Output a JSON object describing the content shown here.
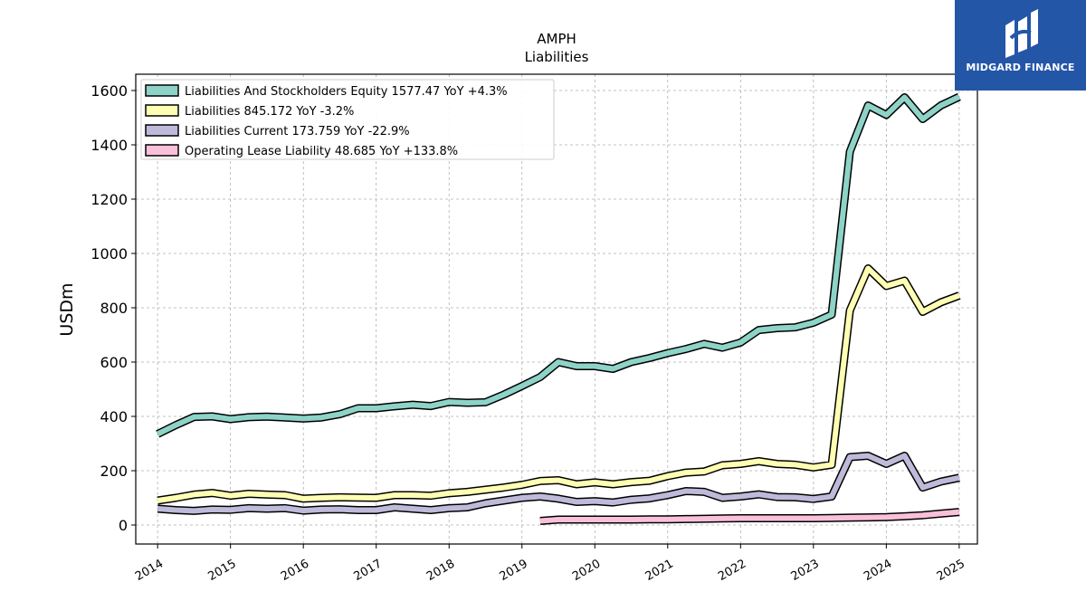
{
  "chart_data": {
    "type": "line",
    "title": "AMPH",
    "subtitle": "Liabilities",
    "ylabel": "USDm",
    "xlabel": "",
    "ylim": [
      -70,
      1660
    ],
    "yticks": [
      0,
      200,
      400,
      600,
      800,
      1000,
      1200,
      1400,
      1600
    ],
    "xticks": [
      "2014",
      "2015",
      "2016",
      "2017",
      "2018",
      "2019",
      "2020",
      "2021",
      "2022",
      "2023",
      "2024",
      "2025"
    ],
    "grid": true,
    "legend_position": "top-left",
    "series": [
      {
        "name": "Liabilities And Stockholders Equity  1577.47 YoY +4.3%",
        "color": "#8dd3c7",
        "x": [
          2014.0,
          2014.25,
          2014.5,
          2014.75,
          2015.0,
          2015.25,
          2015.5,
          2015.75,
          2016.0,
          2016.25,
          2016.5,
          2016.75,
          2017.0,
          2017.25,
          2017.5,
          2017.75,
          2018.0,
          2018.25,
          2018.5,
          2018.75,
          2019.0,
          2019.25,
          2019.5,
          2019.75,
          2020.0,
          2020.25,
          2020.5,
          2020.75,
          2021.0,
          2021.25,
          2021.5,
          2021.75,
          2022.0,
          2022.25,
          2022.5,
          2022.75,
          2023.0,
          2023.25,
          2023.5,
          2023.75,
          2024.0,
          2024.25,
          2024.5,
          2024.75,
          2025.0
        ],
        "y": [
          335,
          368,
          398,
          400,
          390,
          397,
          399,
          396,
          392,
          396,
          408,
          430,
          430,
          437,
          443,
          438,
          453,
          450,
          452,
          480,
          512,
          545,
          600,
          585,
          585,
          575,
          600,
          615,
          633,
          648,
          667,
          653,
          672,
          718,
          725,
          728,
          745,
          775,
          1375,
          1545,
          1510,
          1575,
          1495,
          1545,
          1577
        ]
      },
      {
        "name": "Liabilities  845.172 YoY -3.2%",
        "color": "#ffffb3",
        "x": [
          2014.0,
          2014.25,
          2014.5,
          2014.75,
          2015.0,
          2015.25,
          2015.5,
          2015.75,
          2016.0,
          2016.25,
          2016.5,
          2016.75,
          2017.0,
          2017.25,
          2017.5,
          2017.75,
          2018.0,
          2018.25,
          2018.5,
          2018.75,
          2019.0,
          2019.25,
          2019.5,
          2019.75,
          2020.0,
          2020.25,
          2020.5,
          2020.75,
          2021.0,
          2021.25,
          2021.5,
          2021.75,
          2022.0,
          2022.25,
          2022.5,
          2022.75,
          2023.0,
          2023.25,
          2023.5,
          2023.75,
          2024.0,
          2024.25,
          2024.5,
          2024.75,
          2025.0
        ],
        "y": [
          90,
          100,
          112,
          118,
          108,
          115,
          112,
          110,
          97,
          100,
          102,
          101,
          100,
          110,
          110,
          108,
          117,
          122,
          130,
          138,
          148,
          162,
          165,
          150,
          157,
          150,
          158,
          163,
          180,
          193,
          197,
          220,
          225,
          235,
          225,
          222,
          212,
          222,
          790,
          945,
          880,
          900,
          785,
          820,
          845
        ]
      },
      {
        "name": "Liabilities Current  173.759 YoY -22.9%",
        "color": "#bebada",
        "x": [
          2014.0,
          2014.25,
          2014.5,
          2014.75,
          2015.0,
          2015.25,
          2015.5,
          2015.75,
          2016.0,
          2016.25,
          2016.5,
          2016.75,
          2017.0,
          2017.25,
          2017.5,
          2017.75,
          2018.0,
          2018.25,
          2018.5,
          2018.75,
          2019.0,
          2019.25,
          2019.5,
          2019.75,
          2020.0,
          2020.25,
          2020.5,
          2020.75,
          2021.0,
          2021.25,
          2021.5,
          2021.75,
          2022.0,
          2022.25,
          2022.5,
          2022.75,
          2023.0,
          2023.25,
          2023.5,
          2023.75,
          2024.0,
          2024.25,
          2024.5,
          2024.75,
          2025.0
        ],
        "y": [
          60,
          55,
          52,
          57,
          56,
          62,
          60,
          62,
          53,
          57,
          58,
          55,
          55,
          65,
          60,
          55,
          62,
          65,
          80,
          90,
          100,
          105,
          97,
          85,
          88,
          83,
          93,
          98,
          110,
          125,
          122,
          100,
          105,
          113,
          103,
          102,
          96,
          105,
          250,
          255,
          225,
          255,
          138,
          160,
          174
        ]
      },
      {
        "name": "Operating Lease Liability  48.685 YoY +133.8%",
        "color": "#fbc0d9",
        "x": [
          2019.25,
          2019.5,
          2019.75,
          2020.0,
          2020.25,
          2020.5,
          2020.75,
          2021.0,
          2021.25,
          2021.5,
          2021.75,
          2022.0,
          2022.25,
          2022.5,
          2022.75,
          2023.0,
          2023.25,
          2023.5,
          2023.75,
          2024.0,
          2024.25,
          2024.5,
          2024.75,
          2025.0
        ],
        "y": [
          15,
          20,
          20,
          20,
          20,
          20,
          21,
          21,
          22,
          23,
          24,
          25,
          25,
          25,
          25,
          25,
          26,
          27,
          28,
          29,
          32,
          36,
          42,
          48
        ]
      }
    ]
  },
  "logo": {
    "text": "MIDGARD FINANCE"
  }
}
